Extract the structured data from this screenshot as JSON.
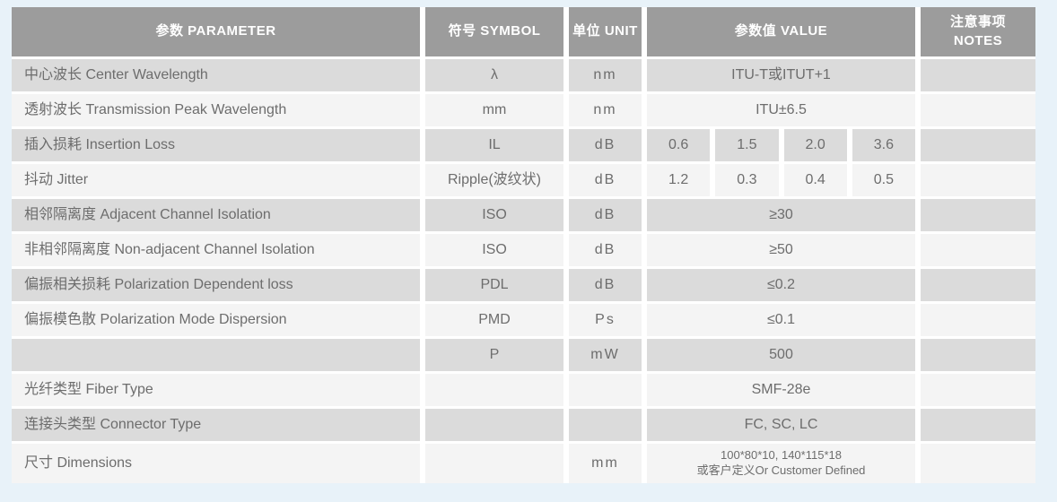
{
  "colors": {
    "page_background": "#e8f2f9",
    "header_background": "#9c9c9c",
    "header_text": "#ffffff",
    "row_dark": "#dbdbdb",
    "row_light": "#f4f4f4",
    "body_text": "#6d6d6d",
    "grid_gap": "#ffffff"
  },
  "table": {
    "headers": [
      {
        "key": "parameter",
        "label": "参数 PARAMETER"
      },
      {
        "key": "symbol",
        "label": "符号 SYMBOL"
      },
      {
        "key": "unit",
        "label": "单位 UNIT"
      },
      {
        "key": "value",
        "label": "参数值 VALUE"
      },
      {
        "key": "notes",
        "line1": "注意事项",
        "line2": "NOTES"
      }
    ],
    "rows": [
      {
        "param": "中心波长 Center Wavelength",
        "symbol": "λ",
        "unit": "nm",
        "value": "ITU-T或ITUT+1",
        "note": ""
      },
      {
        "param": "透射波长 Transmission Peak Wavelength",
        "symbol": "mm",
        "unit": "nm",
        "value": "ITU±6.5",
        "note": ""
      },
      {
        "param": "插入损耗 Insertion Loss",
        "symbol": "IL",
        "unit": "dB",
        "values": [
          "0.6",
          "1.5",
          "2.0",
          "3.6"
        ],
        "note": ""
      },
      {
        "param": "抖动 Jitter",
        "symbol": "Ripple(波纹状)",
        "unit": "dB",
        "values": [
          "1.2",
          "0.3",
          "0.4",
          "0.5"
        ],
        "note": ""
      },
      {
        "param": "相邻隔离度 Adjacent Channel  Isolation",
        "symbol": "ISO",
        "unit": "dB",
        "value": "≥30",
        "note": ""
      },
      {
        "param": "非相邻隔离度 Non-adjacent Channel Isolation",
        "symbol": "ISO",
        "unit": "dB",
        "value": "≥50",
        "note": ""
      },
      {
        "param": "偏振相关损耗 Polarization Dependent loss",
        "symbol": "PDL",
        "unit": "dB",
        "value": "≤0.2",
        "note": ""
      },
      {
        "param": "偏振模色散 Polarization Mode Dispersion",
        "symbol": "PMD",
        "unit": "Ps",
        "value": "≤0.1",
        "note": ""
      },
      {
        "param": "",
        "symbol": "P",
        "unit": "mW",
        "value": "500",
        "note": ""
      },
      {
        "param": "光纤类型 Fiber Type",
        "symbol": "",
        "unit": "",
        "value": "SMF-28e",
        "note": ""
      },
      {
        "param": "连接头类型 Connector Type",
        "symbol": "",
        "unit": "",
        "value": "FC, SC, LC",
        "note": ""
      },
      {
        "param": "尺寸 Dimensions",
        "symbol": "",
        "unit": "mm",
        "value_lines": [
          "100*80*10, 140*115*18",
          "或客户定义Or Customer Defined"
        ],
        "note": ""
      }
    ]
  }
}
